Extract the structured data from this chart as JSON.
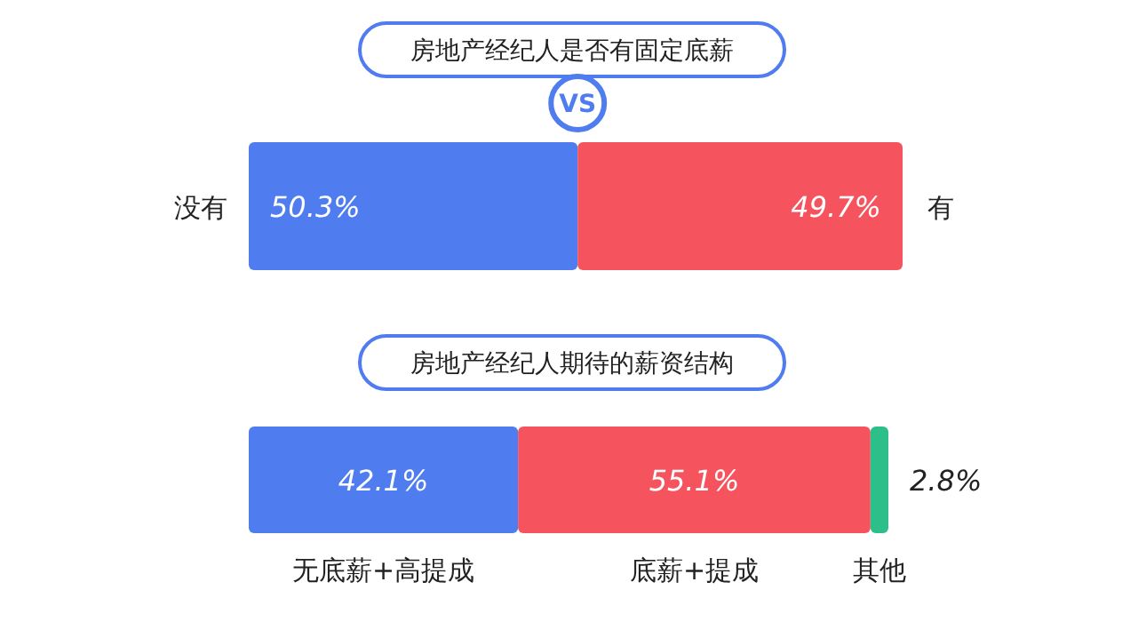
{
  "chart_data": [
    {
      "type": "bar",
      "orientation": "horizontal",
      "stacked": true,
      "title": "房地产经纪人是否有固定底薪",
      "categories": [
        null
      ],
      "series": [
        {
          "name": "没有",
          "color": "#4f7df0",
          "values": [
            50.3
          ],
          "value_labels": [
            "50.3%"
          ]
        },
        {
          "name": "有",
          "color": "#f5545e",
          "values": [
            49.7
          ],
          "value_labels": [
            "49.7%"
          ]
        }
      ],
      "annotations": [
        "VS"
      ]
    },
    {
      "type": "bar",
      "orientation": "horizontal",
      "stacked": true,
      "title": "房地产经纪人期待的薪资结构",
      "categories": [
        null
      ],
      "series": [
        {
          "name": "无底薪+高提成",
          "color": "#4f7df0",
          "values": [
            42.1
          ],
          "value_labels": [
            "42.1%"
          ]
        },
        {
          "name": "底薪+提成",
          "color": "#f5545e",
          "values": [
            55.1
          ],
          "value_labels": [
            "55.1%"
          ]
        },
        {
          "name": "其他",
          "color": "#2dbf8a",
          "values": [
            2.8
          ],
          "value_labels": [
            "2.8%"
          ]
        }
      ]
    }
  ]
}
